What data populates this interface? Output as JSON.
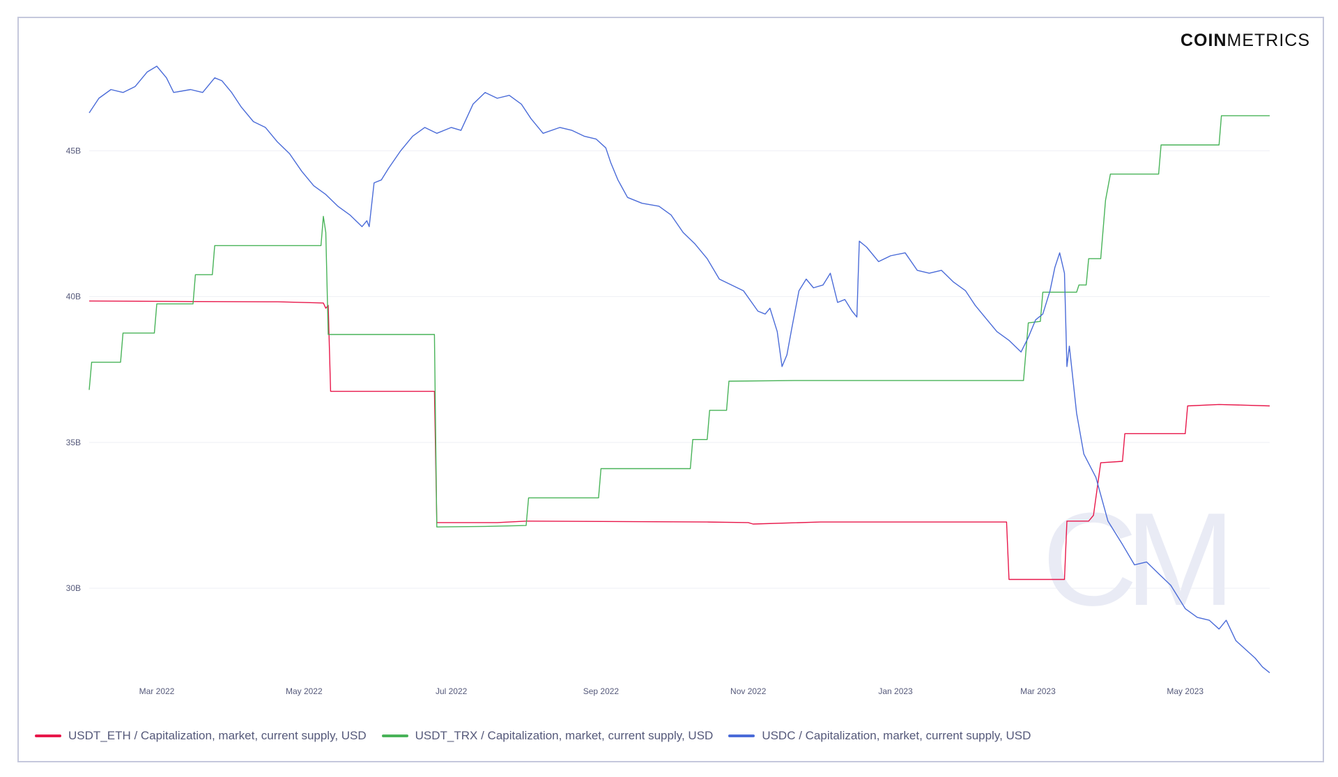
{
  "brand": {
    "bold": "COIN",
    "light": "METRICS"
  },
  "watermark": "CM",
  "chart_data": {
    "type": "line",
    "title": "",
    "xlabel": "",
    "ylabel": "",
    "x_ticks": [
      "Mar 2022",
      "May 2022",
      "Jul 2022",
      "Sep 2022",
      "Nov 2022",
      "Jan 2023",
      "Mar 2023",
      "May 2023"
    ],
    "y_ticks": [
      {
        "value": 30,
        "label": "30B"
      },
      {
        "value": 35,
        "label": "35B"
      },
      {
        "value": 40,
        "label": "40B"
      },
      {
        "value": 45,
        "label": "45B"
      }
    ],
    "ylim": [
      26.8,
      47.9
    ],
    "xlim": [
      "2022-02-01",
      "2023-06-05"
    ],
    "grid": "horizontal",
    "legend_position": "bottom",
    "series": [
      {
        "name": "USDT_ETH / Capitalization, market, current supply, USD",
        "color": "#e8174a",
        "points": [
          [
            "2022-02-01",
            39.85
          ],
          [
            "2022-03-15",
            39.83
          ],
          [
            "2022-04-20",
            39.82
          ],
          [
            "2022-05-09",
            39.78
          ],
          [
            "2022-05-10",
            39.6
          ],
          [
            "2022-05-11",
            39.7
          ],
          [
            "2022-05-12",
            36.75
          ],
          [
            "2022-06-20",
            36.75
          ],
          [
            "2022-06-24",
            36.75
          ],
          [
            "2022-06-25",
            32.25
          ],
          [
            "2022-07-20",
            32.25
          ],
          [
            "2022-08-01",
            32.3
          ],
          [
            "2022-10-15",
            32.27
          ],
          [
            "2022-11-01",
            32.25
          ],
          [
            "2022-11-03",
            32.2
          ],
          [
            "2022-12-01",
            32.27
          ],
          [
            "2023-02-10",
            32.27
          ],
          [
            "2023-02-16",
            32.27
          ],
          [
            "2023-02-17",
            30.3
          ],
          [
            "2023-03-12",
            30.3
          ],
          [
            "2023-03-13",
            32.3
          ],
          [
            "2023-03-22",
            32.3
          ],
          [
            "2023-03-24",
            32.5
          ],
          [
            "2023-03-27",
            34.3
          ],
          [
            "2023-04-05",
            34.35
          ],
          [
            "2023-04-06",
            35.3
          ],
          [
            "2023-05-01",
            35.3
          ],
          [
            "2023-05-02",
            36.25
          ],
          [
            "2023-05-15",
            36.3
          ],
          [
            "2023-06-05",
            36.25
          ]
        ]
      },
      {
        "name": "USDT_TRX / Capitalization, market, current supply, USD",
        "color": "#48b358",
        "points": [
          [
            "2022-02-01",
            36.8
          ],
          [
            "2022-02-02",
            37.75
          ],
          [
            "2022-02-14",
            37.75
          ],
          [
            "2022-02-15",
            38.75
          ],
          [
            "2022-02-28",
            38.75
          ],
          [
            "2022-03-01",
            39.75
          ],
          [
            "2022-03-16",
            39.75
          ],
          [
            "2022-03-17",
            40.75
          ],
          [
            "2022-03-24",
            40.75
          ],
          [
            "2022-03-25",
            41.75
          ],
          [
            "2022-05-08",
            41.75
          ],
          [
            "2022-05-09",
            42.75
          ],
          [
            "2022-05-10",
            42.2
          ],
          [
            "2022-05-11",
            38.7
          ],
          [
            "2022-06-20",
            38.7
          ],
          [
            "2022-06-24",
            38.7
          ],
          [
            "2022-06-25",
            32.1
          ],
          [
            "2022-07-15",
            32.12
          ],
          [
            "2022-08-01",
            32.15
          ],
          [
            "2022-08-02",
            33.1
          ],
          [
            "2022-08-31",
            33.1
          ],
          [
            "2022-09-01",
            34.1
          ],
          [
            "2022-10-08",
            34.1
          ],
          [
            "2022-10-09",
            35.1
          ],
          [
            "2022-10-15",
            35.1
          ],
          [
            "2022-10-16",
            36.1
          ],
          [
            "2022-10-23",
            36.1
          ],
          [
            "2022-10-24",
            37.1
          ],
          [
            "2022-11-20",
            37.12
          ],
          [
            "2023-02-23",
            37.12
          ],
          [
            "2023-02-25",
            39.1
          ],
          [
            "2023-03-02",
            39.15
          ],
          [
            "2023-03-03",
            40.15
          ],
          [
            "2023-03-17",
            40.15
          ],
          [
            "2023-03-18",
            40.4
          ],
          [
            "2023-03-21",
            40.4
          ],
          [
            "2023-03-22",
            41.3
          ],
          [
            "2023-03-27",
            41.3
          ],
          [
            "2023-03-29",
            43.3
          ],
          [
            "2023-03-31",
            44.2
          ],
          [
            "2023-04-20",
            44.2
          ],
          [
            "2023-04-21",
            45.2
          ],
          [
            "2023-05-15",
            45.2
          ],
          [
            "2023-05-16",
            46.2
          ],
          [
            "2023-06-05",
            46.2
          ]
        ]
      },
      {
        "name": "USDC / Capitalization, market, current supply, USD",
        "color": "#4a6bd8",
        "points": [
          [
            "2022-02-01",
            46.3
          ],
          [
            "2022-02-05",
            46.8
          ],
          [
            "2022-02-10",
            47.1
          ],
          [
            "2022-02-15",
            47.0
          ],
          [
            "2022-02-20",
            47.2
          ],
          [
            "2022-02-25",
            47.7
          ],
          [
            "2022-03-01",
            47.9
          ],
          [
            "2022-03-05",
            47.5
          ],
          [
            "2022-03-08",
            47.0
          ],
          [
            "2022-03-15",
            47.1
          ],
          [
            "2022-03-20",
            47.0
          ],
          [
            "2022-03-25",
            47.5
          ],
          [
            "2022-03-28",
            47.4
          ],
          [
            "2022-04-01",
            47.0
          ],
          [
            "2022-04-05",
            46.5
          ],
          [
            "2022-04-10",
            46.0
          ],
          [
            "2022-04-15",
            45.8
          ],
          [
            "2022-04-20",
            45.3
          ],
          [
            "2022-04-25",
            44.9
          ],
          [
            "2022-04-30",
            44.3
          ],
          [
            "2022-05-05",
            43.8
          ],
          [
            "2022-05-10",
            43.5
          ],
          [
            "2022-05-15",
            43.1
          ],
          [
            "2022-05-20",
            42.8
          ],
          [
            "2022-05-25",
            42.4
          ],
          [
            "2022-05-27",
            42.6
          ],
          [
            "2022-05-28",
            42.4
          ],
          [
            "2022-05-30",
            43.9
          ],
          [
            "2022-06-02",
            44.0
          ],
          [
            "2022-06-05",
            44.4
          ],
          [
            "2022-06-10",
            45.0
          ],
          [
            "2022-06-15",
            45.5
          ],
          [
            "2022-06-20",
            45.8
          ],
          [
            "2022-06-25",
            45.6
          ],
          [
            "2022-07-01",
            45.8
          ],
          [
            "2022-07-05",
            45.7
          ],
          [
            "2022-07-10",
            46.6
          ],
          [
            "2022-07-15",
            47.0
          ],
          [
            "2022-07-20",
            46.8
          ],
          [
            "2022-07-25",
            46.9
          ],
          [
            "2022-07-30",
            46.6
          ],
          [
            "2022-08-03",
            46.1
          ],
          [
            "2022-08-08",
            45.6
          ],
          [
            "2022-08-15",
            45.8
          ],
          [
            "2022-08-20",
            45.7
          ],
          [
            "2022-08-25",
            45.5
          ],
          [
            "2022-08-30",
            45.4
          ],
          [
            "2022-09-03",
            45.1
          ],
          [
            "2022-09-05",
            44.6
          ],
          [
            "2022-09-08",
            44.0
          ],
          [
            "2022-09-12",
            43.4
          ],
          [
            "2022-09-18",
            43.2
          ],
          [
            "2022-09-25",
            43.1
          ],
          [
            "2022-09-30",
            42.8
          ],
          [
            "2022-10-05",
            42.2
          ],
          [
            "2022-10-10",
            41.8
          ],
          [
            "2022-10-15",
            41.3
          ],
          [
            "2022-10-20",
            40.6
          ],
          [
            "2022-10-25",
            40.4
          ],
          [
            "2022-10-30",
            40.2
          ],
          [
            "2022-11-05",
            39.5
          ],
          [
            "2022-11-08",
            39.4
          ],
          [
            "2022-11-10",
            39.6
          ],
          [
            "2022-11-13",
            38.8
          ],
          [
            "2022-11-15",
            37.6
          ],
          [
            "2022-11-17",
            38.0
          ],
          [
            "2022-11-19",
            38.9
          ],
          [
            "2022-11-22",
            40.2
          ],
          [
            "2022-11-25",
            40.6
          ],
          [
            "2022-11-28",
            40.3
          ],
          [
            "2022-12-02",
            40.4
          ],
          [
            "2022-12-05",
            40.8
          ],
          [
            "2022-12-08",
            39.8
          ],
          [
            "2022-12-11",
            39.9
          ],
          [
            "2022-12-14",
            39.5
          ],
          [
            "2022-12-16",
            39.3
          ],
          [
            "2022-12-17",
            41.9
          ],
          [
            "2022-12-20",
            41.7
          ],
          [
            "2022-12-25",
            41.2
          ],
          [
            "2022-12-30",
            41.4
          ],
          [
            "2023-01-05",
            41.5
          ],
          [
            "2023-01-10",
            40.9
          ],
          [
            "2023-01-15",
            40.8
          ],
          [
            "2023-01-20",
            40.9
          ],
          [
            "2023-01-25",
            40.5
          ],
          [
            "2023-01-30",
            40.2
          ],
          [
            "2023-02-03",
            39.7
          ],
          [
            "2023-02-07",
            39.3
          ],
          [
            "2023-02-12",
            38.8
          ],
          [
            "2023-02-17",
            38.5
          ],
          [
            "2023-02-22",
            38.1
          ],
          [
            "2023-02-25",
            38.6
          ],
          [
            "2023-02-28",
            39.2
          ],
          [
            "2023-03-03",
            39.4
          ],
          [
            "2023-03-06",
            40.2
          ],
          [
            "2023-03-08",
            41.0
          ],
          [
            "2023-03-10",
            41.5
          ],
          [
            "2023-03-12",
            40.8
          ],
          [
            "2023-03-13",
            37.6
          ],
          [
            "2023-03-14",
            38.3
          ],
          [
            "2023-03-17",
            36.0
          ],
          [
            "2023-03-20",
            34.6
          ],
          [
            "2023-03-25",
            33.8
          ],
          [
            "2023-03-30",
            32.3
          ],
          [
            "2023-04-05",
            31.5
          ],
          [
            "2023-04-10",
            30.8
          ],
          [
            "2023-04-15",
            30.9
          ],
          [
            "2023-04-20",
            30.5
          ],
          [
            "2023-04-25",
            30.1
          ],
          [
            "2023-05-01",
            29.3
          ],
          [
            "2023-05-06",
            29.0
          ],
          [
            "2023-05-11",
            28.9
          ],
          [
            "2023-05-15",
            28.6
          ],
          [
            "2023-05-18",
            28.9
          ],
          [
            "2023-05-22",
            28.2
          ],
          [
            "2023-05-26",
            27.9
          ],
          [
            "2023-05-30",
            27.6
          ],
          [
            "2023-06-02",
            27.3
          ],
          [
            "2023-06-05",
            27.1
          ]
        ]
      }
    ]
  }
}
